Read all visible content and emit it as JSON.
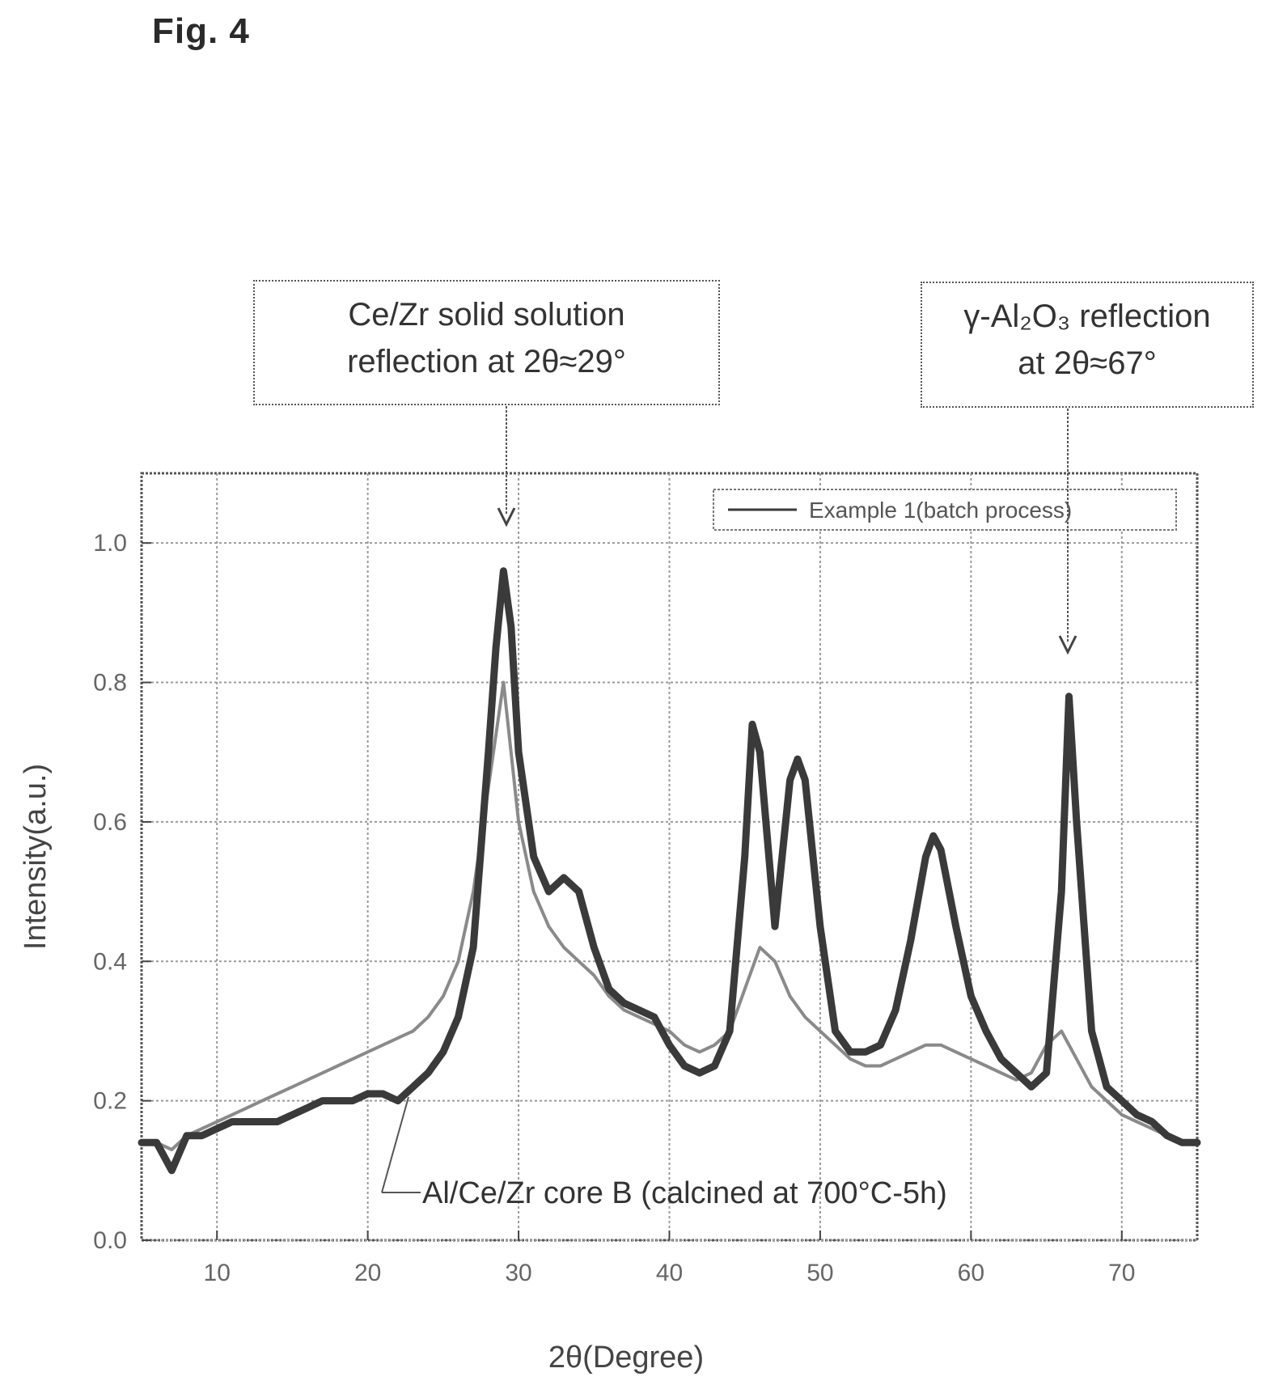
{
  "figure_label": "Fig. 4",
  "annotations": {
    "left_callout": {
      "line1": "Ce/Zr solid solution",
      "line2": "reflection at 2θ≈29°",
      "points_to_x": 29
    },
    "right_callout": {
      "line1": "γ-Al₂O₃ reflection",
      "line2": "at 2θ≈67°",
      "points_to_x": 67
    },
    "series_label": "Al/Ce/Zr core B (calcined at 700°C-5h)"
  },
  "chart_data": {
    "type": "line",
    "xlabel": "2θ(Degree)",
    "ylabel": "Intensity(a.u.)",
    "xlim": [
      5,
      75
    ],
    "ylim": [
      0,
      1.1
    ],
    "x_ticks": [
      10,
      20,
      30,
      40,
      50,
      60,
      70
    ],
    "y_ticks": [
      0.0,
      0.2,
      0.4,
      0.6,
      0.8,
      1.0
    ],
    "y_tick_labels": [
      "0.0",
      "0.2",
      "0.4",
      "0.6",
      "0.8",
      "1.0"
    ],
    "grid": true,
    "legend_position": "top-right",
    "series": [
      {
        "name": "Example 1(batch process)",
        "color": "#3a3a3a",
        "x": [
          5,
          6,
          7,
          8,
          9,
          10,
          11,
          12,
          13,
          14,
          15,
          16,
          17,
          18,
          19,
          20,
          21,
          22,
          23,
          24,
          25,
          26,
          27,
          28,
          28.5,
          29,
          29.5,
          30,
          31,
          32,
          33,
          34,
          35,
          36,
          37,
          38,
          39,
          40,
          41,
          42,
          43,
          44,
          45,
          45.5,
          46,
          47,
          48,
          48.5,
          49,
          50,
          51,
          52,
          53,
          54,
          55,
          56,
          57,
          57.5,
          58,
          59,
          60,
          61,
          62,
          63,
          64,
          65,
          66,
          66.5,
          67,
          68,
          69,
          70,
          71,
          72,
          73,
          74,
          75
        ],
        "values": [
          0.14,
          0.14,
          0.1,
          0.15,
          0.15,
          0.16,
          0.17,
          0.17,
          0.17,
          0.17,
          0.18,
          0.19,
          0.2,
          0.2,
          0.2,
          0.21,
          0.21,
          0.2,
          0.22,
          0.24,
          0.27,
          0.32,
          0.42,
          0.7,
          0.85,
          0.96,
          0.88,
          0.7,
          0.55,
          0.5,
          0.52,
          0.5,
          0.42,
          0.36,
          0.34,
          0.33,
          0.32,
          0.28,
          0.25,
          0.24,
          0.25,
          0.3,
          0.55,
          0.74,
          0.7,
          0.45,
          0.66,
          0.69,
          0.66,
          0.45,
          0.3,
          0.27,
          0.27,
          0.28,
          0.33,
          0.43,
          0.55,
          0.58,
          0.56,
          0.45,
          0.35,
          0.3,
          0.26,
          0.24,
          0.22,
          0.24,
          0.5,
          0.78,
          0.6,
          0.3,
          0.22,
          0.2,
          0.18,
          0.17,
          0.15,
          0.14,
          0.14
        ]
      },
      {
        "name": "Al/Ce/Zr core B (calcined at 700°C-5h)",
        "color": "#8a8a8a",
        "x": [
          5,
          6,
          7,
          8,
          9,
          10,
          11,
          12,
          13,
          14,
          15,
          16,
          17,
          18,
          19,
          20,
          21,
          22,
          23,
          24,
          25,
          26,
          27,
          28,
          29,
          30,
          31,
          32,
          33,
          34,
          35,
          36,
          37,
          38,
          39,
          40,
          41,
          42,
          43,
          44,
          45,
          46,
          47,
          48,
          49,
          50,
          51,
          52,
          53,
          54,
          55,
          56,
          57,
          58,
          59,
          60,
          61,
          62,
          63,
          64,
          65,
          66,
          67,
          68,
          69,
          70,
          71,
          72,
          73,
          74,
          75
        ],
        "values": [
          0.14,
          0.14,
          0.13,
          0.15,
          0.16,
          0.17,
          0.18,
          0.19,
          0.2,
          0.21,
          0.22,
          0.23,
          0.24,
          0.25,
          0.26,
          0.27,
          0.28,
          0.29,
          0.3,
          0.32,
          0.35,
          0.4,
          0.5,
          0.65,
          0.8,
          0.6,
          0.5,
          0.45,
          0.42,
          0.4,
          0.38,
          0.35,
          0.33,
          0.32,
          0.31,
          0.3,
          0.28,
          0.27,
          0.28,
          0.3,
          0.36,
          0.42,
          0.4,
          0.35,
          0.32,
          0.3,
          0.28,
          0.26,
          0.25,
          0.25,
          0.26,
          0.27,
          0.28,
          0.28,
          0.27,
          0.26,
          0.25,
          0.24,
          0.23,
          0.24,
          0.28,
          0.3,
          0.26,
          0.22,
          0.2,
          0.18,
          0.17,
          0.16,
          0.15,
          0.14,
          0.14
        ]
      }
    ]
  }
}
